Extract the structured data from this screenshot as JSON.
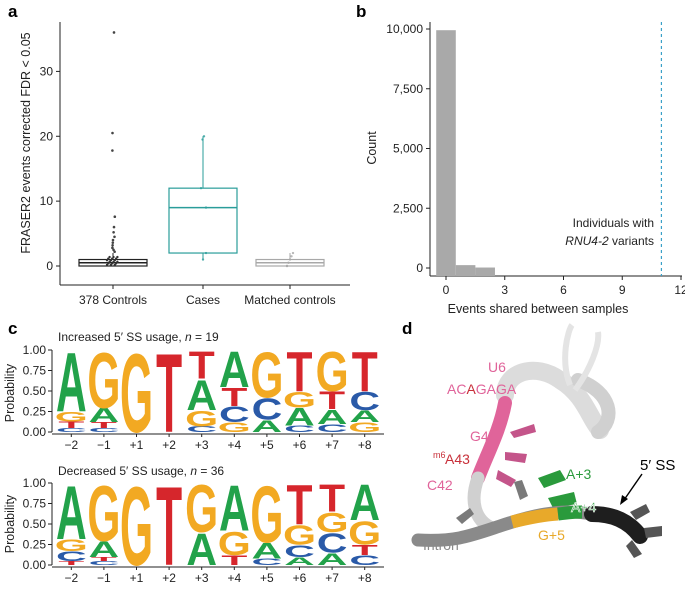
{
  "panels": {
    "a": {
      "letter": "a"
    },
    "b": {
      "letter": "b"
    },
    "c": {
      "letter": "c"
    },
    "d": {
      "letter": "d"
    }
  },
  "chart_data": [
    {
      "panel": "a",
      "type": "box",
      "ylabel": "FRASER2 events corrected FDR < 0.05",
      "ylim": [
        0,
        37
      ],
      "yticks": [
        0,
        10,
        20,
        30
      ],
      "categories": [
        "378 Controls",
        "Cases",
        "Matched controls"
      ],
      "colors": [
        "#222222",
        "#2a9d9a",
        "#a8a8a8"
      ],
      "boxes": [
        {
          "q1": 0,
          "median": 0.5,
          "q3": 1,
          "whisker_low": 0,
          "whisker_high": 2,
          "outliers": [
            36,
            20.5,
            17.8,
            7.6,
            6.0,
            5.2,
            4.5,
            4.0,
            3.6,
            3.2,
            2.8,
            2.5,
            2.2
          ]
        },
        {
          "q1": 2,
          "median": 9,
          "q3": 12,
          "whisker_low": 1,
          "whisker_high": 20,
          "points": [
            20,
            19.5,
            12,
            9,
            2,
            1
          ]
        },
        {
          "q1": 0,
          "median": 0.5,
          "q3": 1,
          "whisker_low": 0,
          "whisker_high": 2,
          "points": [
            2,
            1.5,
            1,
            0.5,
            0,
            0
          ]
        }
      ]
    },
    {
      "panel": "b",
      "type": "bar",
      "ylabel": "Count",
      "xlabel": "Events shared between samples",
      "xlim": [
        -1.2,
        12
      ],
      "ylim": [
        0,
        10500
      ],
      "xticks": [
        0,
        3,
        6,
        9,
        12
      ],
      "yticks": [
        0,
        2500,
        5000,
        7500,
        10000
      ],
      "ytick_labels": [
        "0",
        "2,500",
        "5,000",
        "7,500",
        "10,000"
      ],
      "bars": [
        {
          "x": 0,
          "value": 9950
        },
        {
          "x": 1,
          "value": 120
        },
        {
          "x": 2,
          "value": 20
        }
      ],
      "vline": {
        "x": 11,
        "color": "#3aa0c8"
      },
      "annotation": {
        "line1": "Individuals with",
        "line2_italic": "RNU4-2",
        "line2_rest": " variants"
      }
    },
    {
      "panel": "c-top",
      "type": "sequence_logo",
      "title": "Increased 5′ SS usage, ",
      "title_n_label": "n",
      "title_n_value": " = 19",
      "ylabel": "Probability",
      "yticks": [
        "0.00",
        "0.25",
        "0.50",
        "0.75",
        "1.00"
      ],
      "positions": [
        "−2",
        "−1",
        "+1",
        "+2",
        "+3",
        "+4",
        "+5",
        "+6",
        "+7",
        "+8"
      ],
      "stacks": [
        [
          {
            "b": "C",
            "p": 0.05
          },
          {
            "b": "T",
            "p": 0.08
          },
          {
            "b": "G",
            "p": 0.12
          },
          {
            "b": "A",
            "p": 0.75
          }
        ],
        [
          {
            "b": "C",
            "p": 0.05
          },
          {
            "b": "T",
            "p": 0.07
          },
          {
            "b": "A",
            "p": 0.18
          },
          {
            "b": "G",
            "p": 0.7
          }
        ],
        [
          {
            "b": "G",
            "p": 1.0
          }
        ],
        [
          {
            "b": "T",
            "p": 1.0
          }
        ],
        [
          {
            "b": "C",
            "p": 0.07
          },
          {
            "b": "G",
            "p": 0.2
          },
          {
            "b": "A",
            "p": 0.38
          },
          {
            "b": "T",
            "p": 0.35
          }
        ],
        [
          {
            "b": "G",
            "p": 0.12
          },
          {
            "b": "C",
            "p": 0.2
          },
          {
            "b": "T",
            "p": 0.23
          },
          {
            "b": "A",
            "p": 0.45
          }
        ],
        [
          {
            "b": "A",
            "p": 0.15
          },
          {
            "b": "C",
            "p": 0.27
          },
          {
            "b": "G",
            "p": 0.58
          }
        ],
        [
          {
            "b": "C",
            "p": 0.08
          },
          {
            "b": "A",
            "p": 0.22
          },
          {
            "b": "G",
            "p": 0.2
          },
          {
            "b": "T",
            "p": 0.5
          }
        ],
        [
          {
            "b": "C",
            "p": 0.1
          },
          {
            "b": "A",
            "p": 0.18
          },
          {
            "b": "T",
            "p": 0.22
          },
          {
            "b": "G",
            "p": 0.5
          }
        ],
        [
          {
            "b": "G",
            "p": 0.12
          },
          {
            "b": "A",
            "p": 0.15
          },
          {
            "b": "C",
            "p": 0.23
          },
          {
            "b": "T",
            "p": 0.5
          }
        ]
      ]
    },
    {
      "panel": "c-bottom",
      "type": "sequence_logo",
      "title": "Decreased 5′ SS usage, ",
      "title_n_label": "n",
      "title_n_value": " = 36",
      "ylabel": "Probability",
      "yticks": [
        "0.00",
        "0.25",
        "0.50",
        "0.75",
        "1.00"
      ],
      "positions": [
        "−2",
        "−1",
        "+1",
        "+2",
        "+3",
        "+4",
        "+5",
        "+6",
        "+7",
        "+8"
      ],
      "stacks": [
        [
          {
            "b": "T",
            "p": 0.05
          },
          {
            "b": "C",
            "p": 0.12
          },
          {
            "b": "G",
            "p": 0.15
          },
          {
            "b": "A",
            "p": 0.68
          }
        ],
        [
          {
            "b": "C",
            "p": 0.05
          },
          {
            "b": "T",
            "p": 0.05
          },
          {
            "b": "A",
            "p": 0.2
          },
          {
            "b": "G",
            "p": 0.7
          }
        ],
        [
          {
            "b": "G",
            "p": 1.0
          }
        ],
        [
          {
            "b": "T",
            "p": 1.0
          }
        ],
        [
          {
            "b": "A",
            "p": 0.4
          },
          {
            "b": "G",
            "p": 0.6
          }
        ],
        [
          {
            "b": "T",
            "p": 0.12
          },
          {
            "b": "G",
            "p": 0.3
          },
          {
            "b": "A",
            "p": 0.58
          }
        ],
        [
          {
            "b": "C",
            "p": 0.08
          },
          {
            "b": "A",
            "p": 0.2
          },
          {
            "b": "G",
            "p": 0.72
          }
        ],
        [
          {
            "b": "A",
            "p": 0.1
          },
          {
            "b": "C",
            "p": 0.15
          },
          {
            "b": "G",
            "p": 0.25
          },
          {
            "b": "T",
            "p": 0.5
          }
        ],
        [
          {
            "b": "A",
            "p": 0.15
          },
          {
            "b": "C",
            "p": 0.25
          },
          {
            "b": "G",
            "p": 0.25
          },
          {
            "b": "T",
            "p": 0.35
          }
        ],
        [
          {
            "b": "C",
            "p": 0.12
          },
          {
            "b": "T",
            "p": 0.13
          },
          {
            "b": "G",
            "p": 0.3
          },
          {
            "b": "A",
            "p": 0.45
          }
        ]
      ]
    }
  ],
  "base_colors": {
    "A": "#22a24a",
    "C": "#2a5aa8",
    "G": "#f2a922",
    "T": "#d6262c"
  },
  "structure": {
    "u6_label": "U6",
    "u6_seq_a": "AC",
    "u6_seq_hl": "A",
    "u6_seq_b": "GAGA",
    "g44": "G44",
    "m6a_sup": "m6",
    "a43": "A43",
    "c42": "C42",
    "a3": "A+3",
    "a4": "A+4",
    "g5": "G+5",
    "intron": "Intron",
    "ss5": "5′ SS",
    "colors": {
      "pink": "#e0649a",
      "red": "#c8303a",
      "green": "#2a9a3c",
      "gold": "#e8a92a",
      "gray": "#8a8a8a",
      "dark": "#1e1e1e"
    }
  }
}
